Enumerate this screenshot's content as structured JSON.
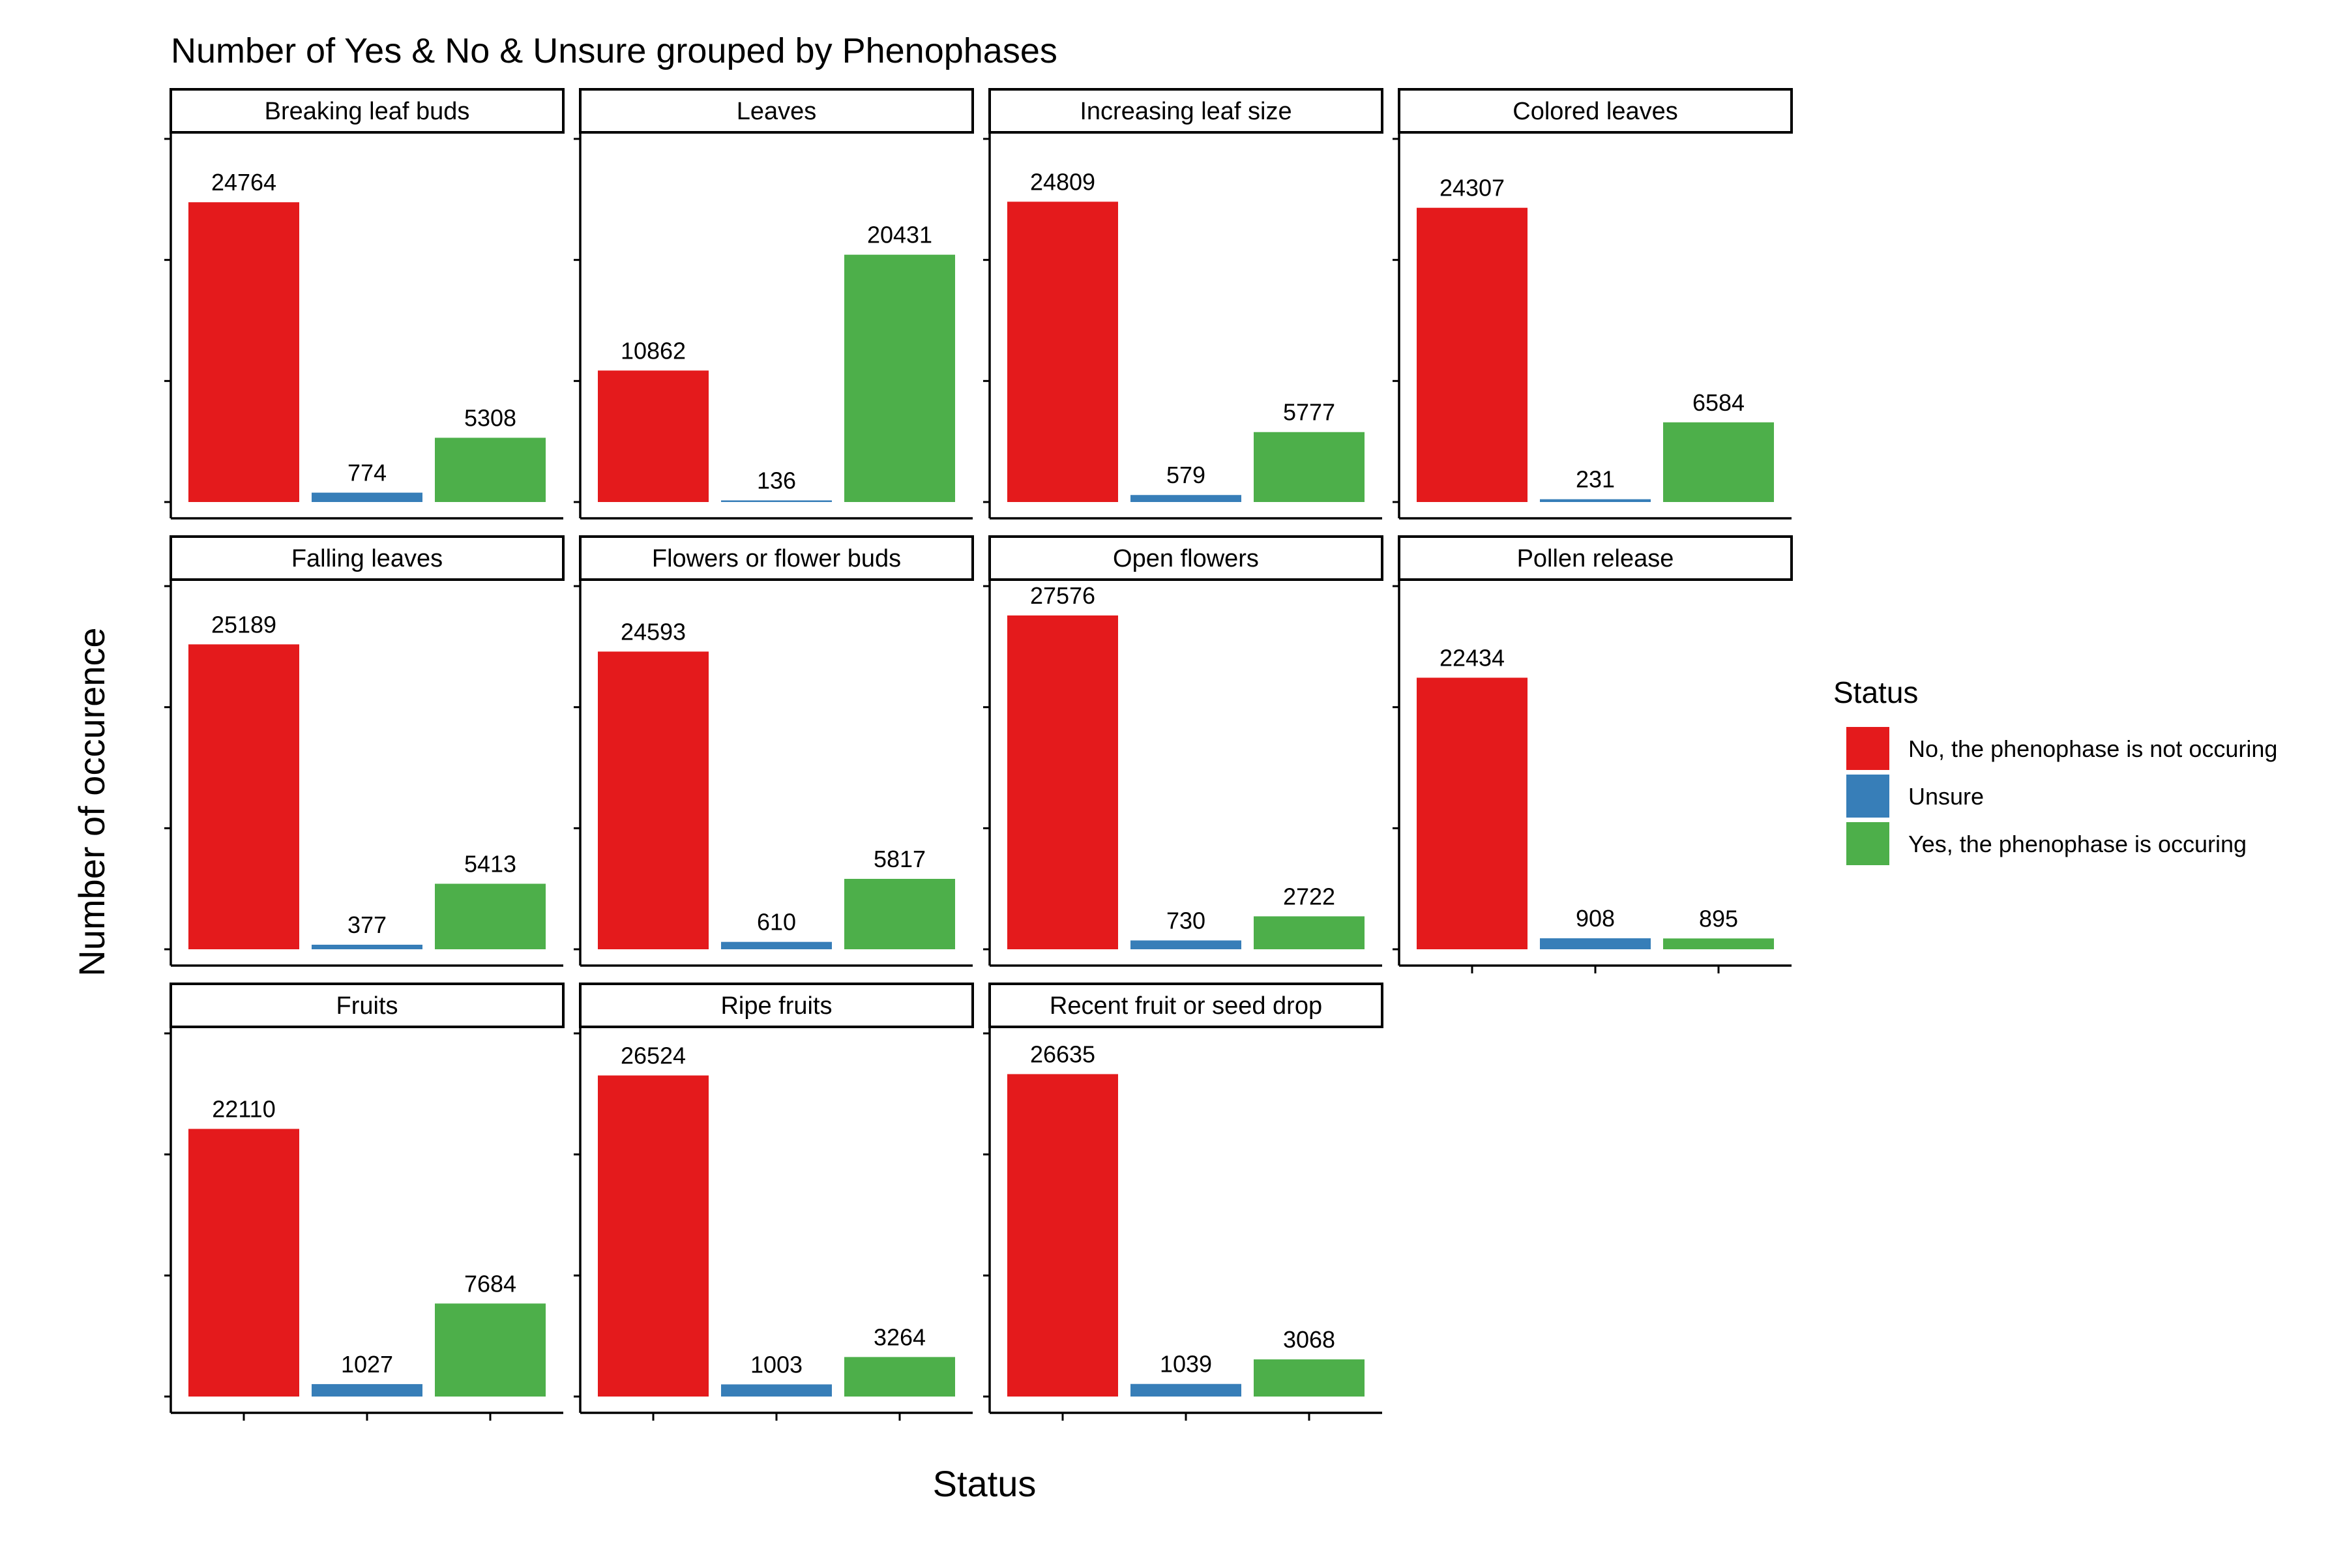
{
  "chart_data": {
    "type": "bar",
    "title": "Number of Yes & No & Unsure grouped by Phenophases",
    "xlabel": "Status",
    "ylabel": "Number of occurence",
    "ylim": [
      0,
      30000
    ],
    "grid": false,
    "legend": {
      "title": "Status",
      "placement": "right",
      "entries": [
        {
          "label": "No, the phenophase is not occuring",
          "color": "#e41a1c"
        },
        {
          "label": "Unsure",
          "color": "#377eb8"
        },
        {
          "label": "Yes, the phenophase is occuring",
          "color": "#4daf4a"
        }
      ]
    },
    "categories": [
      "No, the phenophase is not occuring",
      "Unsure",
      "Yes, the phenophase is occuring"
    ],
    "panels": [
      {
        "name": "Breaking leaf buds",
        "values": [
          24764,
          774,
          5308
        ]
      },
      {
        "name": "Leaves",
        "values": [
          10862,
          136,
          20431
        ]
      },
      {
        "name": "Increasing leaf size",
        "values": [
          24809,
          579,
          5777
        ]
      },
      {
        "name": "Colored leaves",
        "values": [
          24307,
          231,
          6584
        ]
      },
      {
        "name": "Falling leaves",
        "values": [
          25189,
          377,
          5413
        ]
      },
      {
        "name": "Flowers or flower buds",
        "values": [
          24593,
          610,
          5817
        ]
      },
      {
        "name": "Open flowers",
        "values": [
          27576,
          730,
          2722
        ]
      },
      {
        "name": "Pollen release",
        "values": [
          22434,
          908,
          895
        ]
      },
      {
        "name": "Fruits",
        "values": [
          22110,
          1027,
          7684
        ]
      },
      {
        "name": "Ripe fruits",
        "values": [
          26524,
          1003,
          3264
        ]
      },
      {
        "name": "Recent fruit or seed drop",
        "values": [
          26635,
          1039,
          3068
        ]
      }
    ]
  }
}
